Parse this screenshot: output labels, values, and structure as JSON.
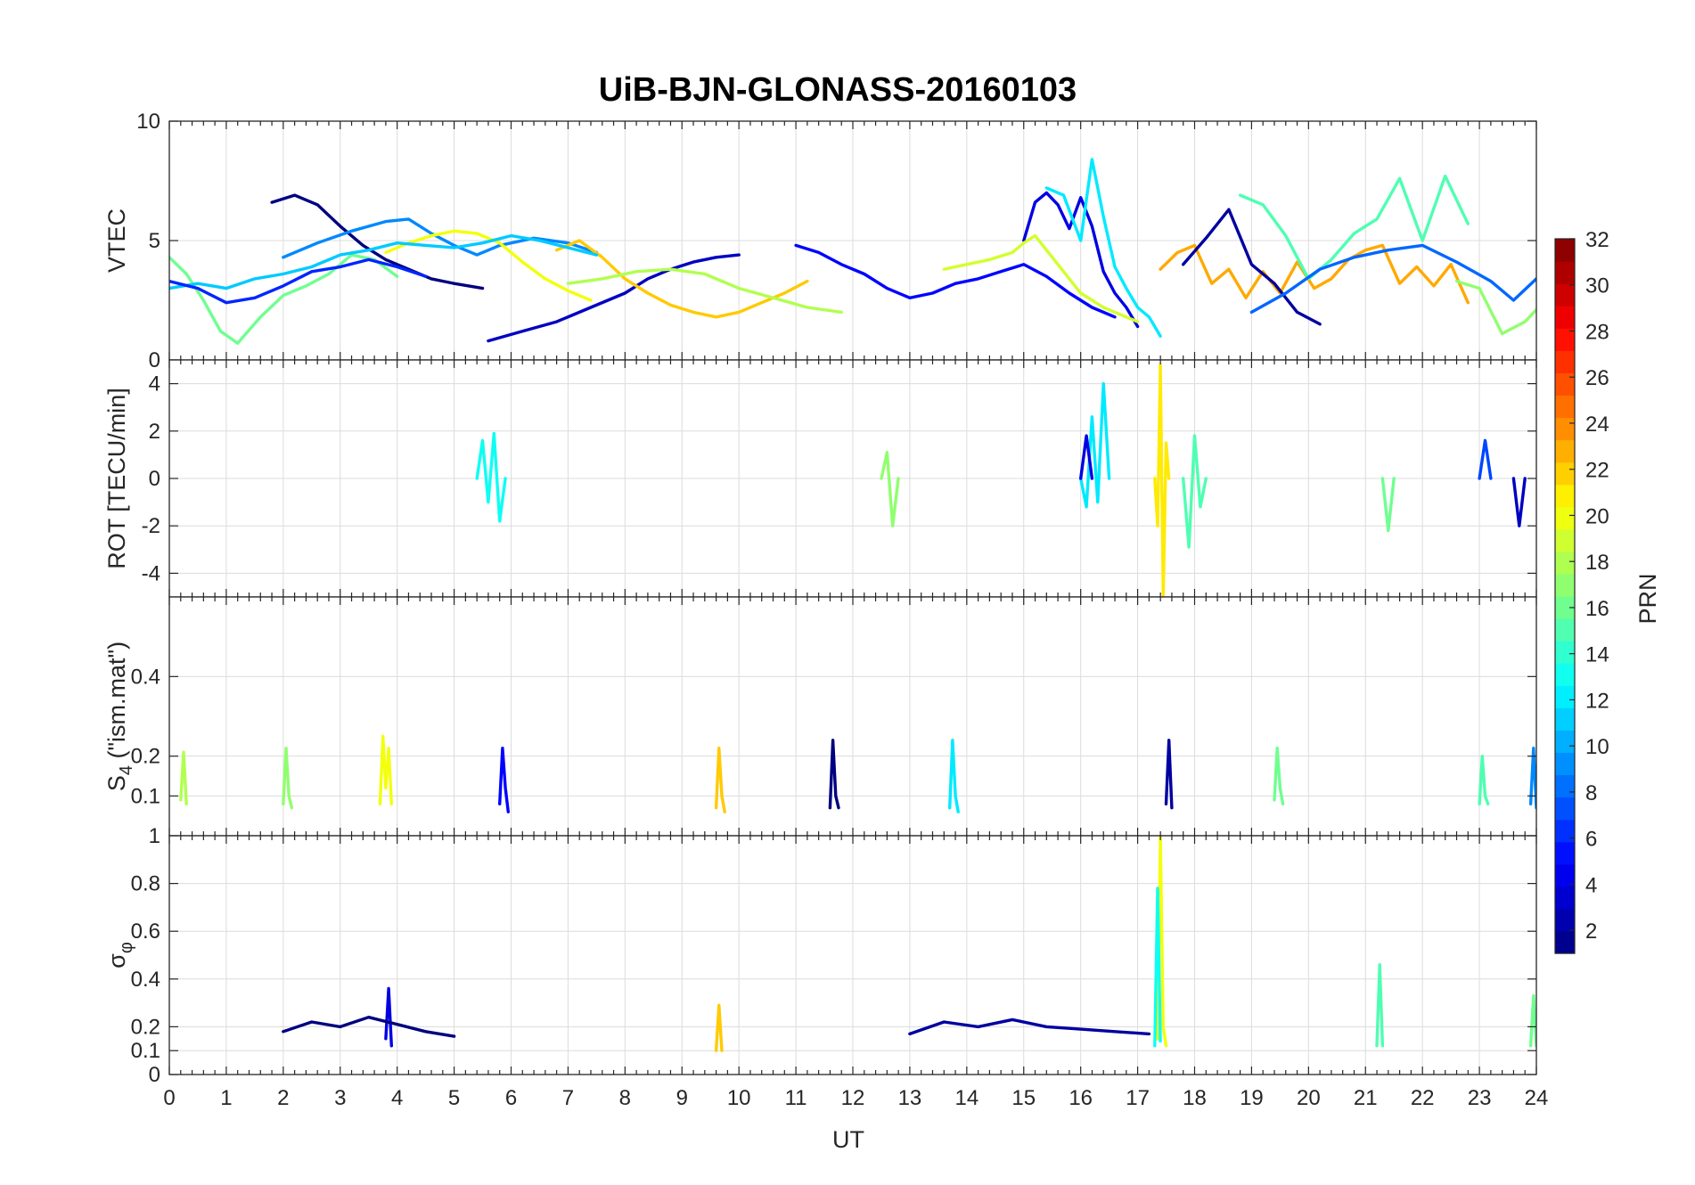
{
  "title": "UiB-BJN-GLONASS-20160103",
  "colorbar": {
    "label": "PRN",
    "ticks": [
      "2",
      "4",
      "6",
      "8",
      "10",
      "12",
      "14",
      "16",
      "18",
      "20",
      "22",
      "24",
      "26",
      "28",
      "30",
      "32"
    ],
    "range": [
      1,
      32
    ]
  },
  "xaxis": {
    "label": "UT",
    "ticks": [
      "0",
      "1",
      "2",
      "3",
      "4",
      "5",
      "6",
      "7",
      "8",
      "9",
      "10",
      "11",
      "12",
      "13",
      "14",
      "15",
      "16",
      "17",
      "18",
      "19",
      "20",
      "21",
      "22",
      "23",
      "24"
    ]
  },
  "chart_data": [
    {
      "type": "line",
      "panel": "vtec",
      "ylabel": "VTEC",
      "xlim": [
        0,
        24
      ],
      "ylim": [
        0,
        10
      ],
      "yticks": [
        "0",
        "5",
        "10"
      ],
      "series": [
        {
          "prn": 1,
          "x": [
            1.8,
            2.2,
            2.6,
            3.0,
            3.4,
            3.8,
            4.2,
            4.6,
            5.0,
            5.5
          ],
          "y": [
            6.6,
            6.9,
            6.5,
            5.6,
            4.8,
            4.2,
            3.8,
            3.4,
            3.2,
            3.0
          ]
        },
        {
          "prn": 3,
          "x": [
            5.6,
            6.2,
            6.8,
            7.4,
            8.0,
            8.4,
            8.8,
            9.2,
            9.6,
            10.0
          ],
          "y": [
            0.8,
            1.2,
            1.6,
            2.2,
            2.8,
            3.4,
            3.8,
            4.1,
            4.3,
            4.4
          ]
        },
        {
          "prn": 9,
          "x": [
            2.0,
            2.6,
            3.2,
            3.8,
            4.2,
            4.6,
            5.0,
            5.4,
            5.8,
            6.4,
            7.0,
            7.5
          ],
          "y": [
            4.3,
            4.9,
            5.4,
            5.8,
            5.9,
            5.3,
            4.8,
            4.4,
            4.8,
            5.1,
            4.9,
            4.5
          ]
        },
        {
          "prn": 16,
          "x": [
            0.0,
            0.3,
            0.6,
            0.9,
            1.2,
            1.6,
            2.0,
            2.4,
            2.8,
            3.2,
            3.6,
            4.0
          ],
          "y": [
            4.3,
            3.6,
            2.5,
            1.2,
            0.7,
            1.8,
            2.7,
            3.1,
            3.6,
            4.4,
            4.2,
            3.5
          ]
        },
        {
          "prn": 22,
          "x": [
            6.8,
            7.2,
            7.6,
            8.0,
            8.4,
            8.8,
            9.2,
            9.6,
            10.0,
            10.4,
            10.8,
            11.2
          ],
          "y": [
            4.6,
            5.0,
            4.3,
            3.4,
            2.8,
            2.3,
            2.0,
            1.8,
            2.0,
            2.4,
            2.8,
            3.3
          ]
        },
        {
          "prn": 20,
          "x": [
            3.8,
            4.2,
            4.6,
            5.0,
            5.4,
            5.8,
            6.2,
            6.6,
            7.0,
            7.4
          ],
          "y": [
            4.5,
            4.9,
            5.2,
            5.4,
            5.3,
            4.9,
            4.1,
            3.4,
            2.9,
            2.5
          ]
        },
        {
          "prn": 5,
          "x": [
            11.0,
            11.4,
            11.8,
            12.2,
            12.6,
            13.0,
            13.4,
            13.8,
            14.2,
            14.6,
            15.0,
            15.4,
            15.8,
            16.2,
            16.6
          ],
          "y": [
            4.8,
            4.5,
            4.0,
            3.6,
            3.0,
            2.6,
            2.8,
            3.2,
            3.4,
            3.7,
            4.0,
            3.5,
            2.8,
            2.2,
            1.8
          ]
        },
        {
          "prn": 4,
          "x": [
            15.0,
            15.2,
            15.4,
            15.6,
            15.8,
            16.0,
            16.2,
            16.4,
            16.6,
            16.8,
            17.0
          ],
          "y": [
            5.0,
            6.6,
            7.0,
            6.5,
            5.5,
            6.8,
            5.6,
            3.7,
            2.8,
            2.2,
            1.4
          ]
        },
        {
          "prn": 12,
          "x": [
            15.4,
            15.7,
            16.0,
            16.2,
            16.4,
            16.6,
            16.8,
            17.0,
            17.2,
            17.4
          ],
          "y": [
            7.2,
            6.9,
            5.0,
            8.4,
            6.0,
            3.9,
            3.0,
            2.2,
            1.8,
            1.0
          ]
        },
        {
          "prn": 19,
          "x": [
            13.6,
            14.0,
            14.4,
            14.8,
            15.0,
            15.2,
            15.6,
            16.0,
            16.4,
            16.8,
            17.0
          ],
          "y": [
            3.8,
            4.0,
            4.2,
            4.5,
            4.9,
            5.2,
            4.0,
            2.8,
            2.2,
            1.8,
            1.6
          ]
        },
        {
          "prn": 23,
          "x": [
            17.4,
            17.7,
            18.0,
            18.3,
            18.6,
            18.9,
            19.2,
            19.5,
            19.8,
            20.1,
            20.4,
            20.7,
            21.0,
            21.3,
            21.6,
            21.9,
            22.2,
            22.5,
            22.8
          ],
          "y": [
            3.8,
            4.5,
            4.8,
            3.2,
            3.8,
            2.6,
            3.7,
            2.8,
            4.1,
            3.0,
            3.4,
            4.2,
            4.6,
            4.8,
            3.2,
            3.9,
            3.1,
            4.0,
            2.4
          ]
        },
        {
          "prn": 15,
          "x": [
            18.8,
            19.2,
            19.6,
            20.0,
            20.4,
            20.8,
            21.2,
            21.6,
            22.0,
            22.4,
            22.8
          ],
          "y": [
            6.9,
            6.5,
            5.2,
            3.4,
            4.2,
            5.3,
            5.9,
            7.6,
            5.0,
            7.7,
            5.7
          ]
        },
        {
          "prn": 2,
          "x": [
            17.8,
            18.2,
            18.6,
            19.0,
            19.4,
            19.8,
            20.2
          ],
          "y": [
            4.0,
            5.1,
            6.3,
            4.0,
            3.2,
            2.0,
            1.5
          ]
        },
        {
          "prn": 8,
          "x": [
            19.0,
            19.6,
            20.2,
            20.8,
            21.4,
            22.0,
            22.6,
            23.2,
            23.6,
            24.0
          ],
          "y": [
            2.0,
            2.8,
            3.8,
            4.3,
            4.6,
            4.8,
            4.1,
            3.3,
            2.5,
            3.4
          ]
        },
        {
          "prn": 17,
          "x": [
            22.6,
            23.0,
            23.4,
            23.8,
            24.0
          ],
          "y": [
            3.3,
            3.0,
            1.1,
            1.6,
            2.1
          ]
        },
        {
          "prn": 11,
          "x": [
            0.0,
            0.5,
            1.0,
            1.5,
            2.0,
            2.5,
            3.0,
            3.5,
            4.0,
            4.5,
            5.0,
            5.5,
            6.0,
            6.5,
            7.0,
            7.5
          ],
          "y": [
            3.0,
            3.2,
            3.0,
            3.4,
            3.6,
            3.9,
            4.4,
            4.6,
            4.9,
            4.8,
            4.7,
            4.9,
            5.2,
            5.0,
            4.7,
            4.4
          ]
        },
        {
          "prn": 18,
          "x": [
            7.0,
            7.6,
            8.2,
            8.8,
            9.4,
            10.0,
            10.6,
            11.2,
            11.8
          ],
          "y": [
            3.2,
            3.4,
            3.7,
            3.8,
            3.6,
            3.0,
            2.6,
            2.2,
            2.0
          ]
        },
        {
          "prn": 6,
          "x": [
            0.0,
            0.5,
            1.0,
            1.5,
            2.0,
            2.5,
            3.0,
            3.5,
            4.0,
            4.5
          ],
          "y": [
            3.3,
            3.0,
            2.4,
            2.6,
            3.1,
            3.7,
            3.9,
            4.2,
            3.9,
            3.5
          ]
        }
      ]
    },
    {
      "type": "line",
      "panel": "rot",
      "ylabel": "ROT [TECU/min]",
      "xlim": [
        0,
        24
      ],
      "ylim": [
        -5,
        5
      ],
      "yticks": [
        "-4",
        "-2",
        "0",
        "2",
        "4"
      ],
      "series": [
        {
          "prn": 21,
          "x": [
            17.3,
            17.35,
            17.4,
            17.45,
            17.5,
            17.55
          ],
          "y": [
            0,
            -2.0,
            4.8,
            -5.0,
            1.5,
            0
          ]
        },
        {
          "prn": 12,
          "x": [
            16.0,
            16.1,
            16.2,
            16.3,
            16.4,
            16.5
          ],
          "y": [
            0,
            -1.2,
            2.6,
            -1.0,
            4.0,
            0
          ]
        },
        {
          "prn": 13,
          "x": [
            5.4,
            5.5,
            5.6,
            5.7,
            5.8,
            5.9
          ],
          "y": [
            0,
            1.6,
            -1.0,
            1.9,
            -1.8,
            0
          ]
        },
        {
          "prn": 17,
          "x": [
            12.5,
            12.6,
            12.7,
            12.8
          ],
          "y": [
            0,
            1.1,
            -2.0,
            0
          ]
        },
        {
          "prn": 15,
          "x": [
            17.8,
            17.9,
            18.0,
            18.1,
            18.2
          ],
          "y": [
            0,
            -2.9,
            1.8,
            -1.2,
            0
          ]
        },
        {
          "prn": 4,
          "x": [
            16.0,
            16.1,
            16.2
          ],
          "y": [
            0,
            1.8,
            0
          ]
        },
        {
          "prn": 3,
          "x": [
            23.6,
            23.7,
            23.8
          ],
          "y": [
            0,
            -2.0,
            0
          ]
        },
        {
          "prn": 7,
          "x": [
            23.0,
            23.1,
            23.2
          ],
          "y": [
            0,
            1.6,
            0
          ]
        },
        {
          "prn": 16,
          "x": [
            21.3,
            21.4,
            21.5
          ],
          "y": [
            0,
            -2.2,
            0
          ]
        }
      ]
    },
    {
      "type": "line",
      "panel": "s4",
      "ylabel": "S4 (\"ism.mat\")",
      "ylabel_main": "S",
      "ylabel_sub": "4",
      "ylabel_rest": " (\"ism.mat\")",
      "xlim": [
        0,
        24
      ],
      "ylim": [
        0,
        0.6
      ],
      "yticks": [
        "0.1",
        "0.2",
        "0.4"
      ],
      "series": [
        {
          "prn": 20,
          "x": [
            3.7,
            3.75,
            3.8,
            3.85,
            3.9
          ],
          "y": [
            0.08,
            0.25,
            0.12,
            0.22,
            0.08
          ]
        },
        {
          "prn": 17,
          "x": [
            2.0,
            2.05,
            2.1,
            2.15
          ],
          "y": [
            0.08,
            0.22,
            0.1,
            0.07
          ]
        },
        {
          "prn": 22,
          "x": [
            9.6,
            9.65,
            9.7,
            9.75
          ],
          "y": [
            0.07,
            0.22,
            0.1,
            0.06
          ]
        },
        {
          "prn": 5,
          "x": [
            5.8,
            5.85,
            5.9,
            5.95
          ],
          "y": [
            0.08,
            0.22,
            0.12,
            0.06
          ]
        },
        {
          "prn": 1,
          "x": [
            11.6,
            11.65,
            11.7,
            11.75
          ],
          "y": [
            0.07,
            0.24,
            0.1,
            0.07
          ]
        },
        {
          "prn": 12,
          "x": [
            13.7,
            13.75,
            13.8,
            13.85
          ],
          "y": [
            0.07,
            0.24,
            0.1,
            0.06
          ]
        },
        {
          "prn": 2,
          "x": [
            17.5,
            17.55,
            17.6
          ],
          "y": [
            0.08,
            0.24,
            0.07
          ]
        },
        {
          "prn": 16,
          "x": [
            19.4,
            19.45,
            19.5,
            19.55
          ],
          "y": [
            0.09,
            0.22,
            0.12,
            0.08
          ]
        },
        {
          "prn": 15,
          "x": [
            23.0,
            23.05,
            23.1,
            23.15
          ],
          "y": [
            0.08,
            0.2,
            0.1,
            0.08
          ]
        },
        {
          "prn": 9,
          "x": [
            23.9,
            23.95,
            24.0
          ],
          "y": [
            0.08,
            0.22,
            0.07
          ]
        },
        {
          "prn": 18,
          "x": [
            0.2,
            0.25,
            0.3
          ],
          "y": [
            0.09,
            0.21,
            0.08
          ]
        }
      ]
    },
    {
      "type": "line",
      "panel": "sigma_phi",
      "ylabel": "σφ",
      "ylabel_main": "σ",
      "ylabel_sub": "φ",
      "xlim": [
        0,
        24
      ],
      "ylim": [
        0,
        1
      ],
      "yticks": [
        "0",
        "0.1",
        "0.2",
        "0.4",
        "0.6",
        "0.8",
        "1"
      ],
      "series": [
        {
          "prn": 20,
          "x": [
            17.35,
            17.4,
            17.45,
            17.5
          ],
          "y": [
            0.15,
            1.0,
            0.2,
            0.12
          ]
        },
        {
          "prn": 13,
          "x": [
            17.3,
            17.35,
            17.4
          ],
          "y": [
            0.12,
            0.78,
            0.14
          ]
        },
        {
          "prn": 4,
          "x": [
            3.8,
            3.85,
            3.9
          ],
          "y": [
            0.15,
            0.36,
            0.12
          ]
        },
        {
          "prn": 15,
          "x": [
            21.2,
            21.25,
            21.3
          ],
          "y": [
            0.12,
            0.46,
            0.12
          ]
        },
        {
          "prn": 22,
          "x": [
            9.6,
            9.65,
            9.7
          ],
          "y": [
            0.1,
            0.29,
            0.1
          ]
        },
        {
          "prn": 16,
          "x": [
            23.9,
            23.95,
            24.0
          ],
          "y": [
            0.12,
            0.33,
            0.12
          ]
        },
        {
          "prn": 1,
          "x": [
            2.0,
            2.5,
            3.0,
            3.5,
            4.0,
            4.5,
            5.0
          ],
          "y": [
            0.18,
            0.22,
            0.2,
            0.24,
            0.21,
            0.18,
            0.16
          ]
        },
        {
          "prn": 2,
          "x": [
            13.0,
            13.6,
            14.2,
            14.8,
            15.4,
            16.0,
            16.6,
            17.2
          ],
          "y": [
            0.17,
            0.22,
            0.2,
            0.23,
            0.2,
            0.19,
            0.18,
            0.17
          ]
        }
      ]
    }
  ]
}
